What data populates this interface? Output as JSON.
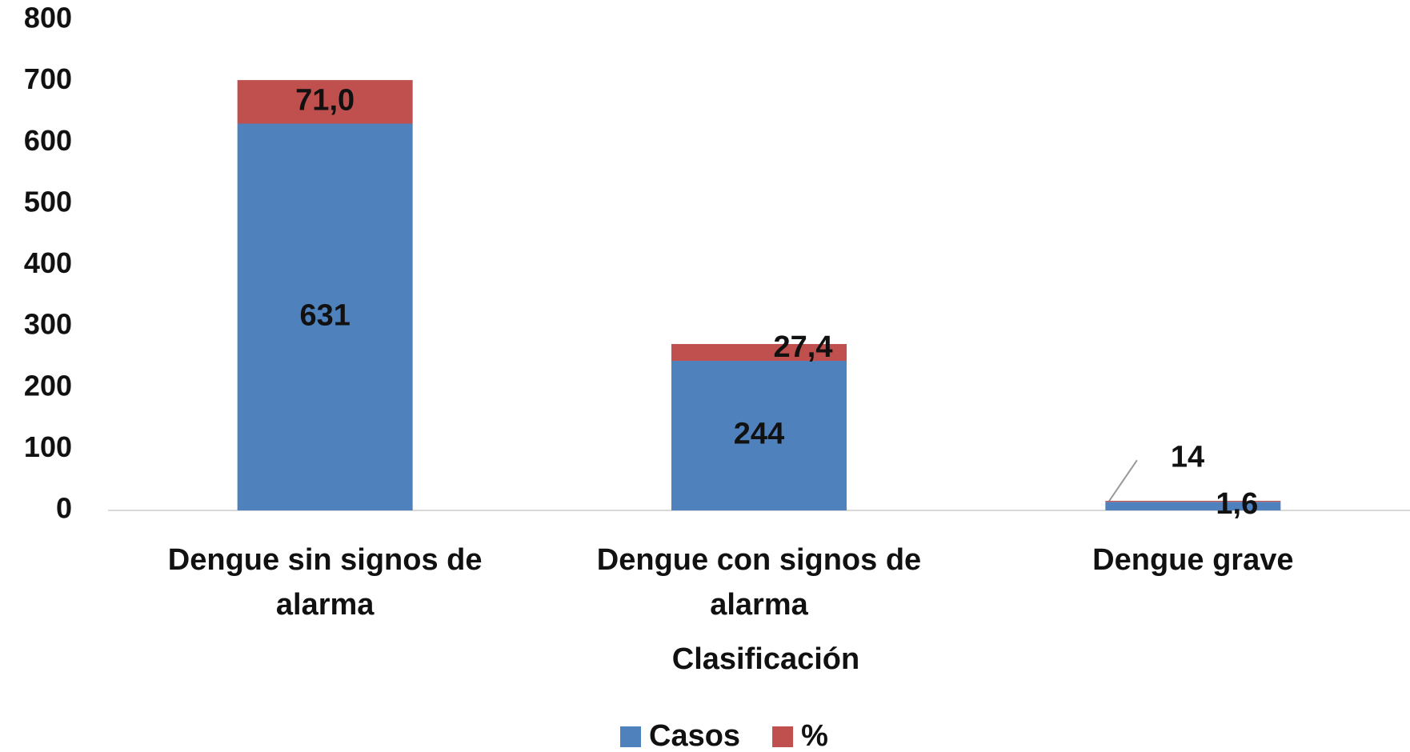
{
  "chart_data": {
    "type": "stacked_bar",
    "categories": [
      "Dengue sin signos de alarma",
      "Dengue con signos de alarma",
      "Dengue grave"
    ],
    "series": [
      {
        "name": "Casos",
        "color": "#4f81bd",
        "values": [
          631,
          244,
          14
        ]
      },
      {
        "name": "%",
        "color": "#c0504d",
        "values": [
          71.0,
          27.4,
          1.6
        ],
        "value_labels": [
          "71,0",
          "27,4",
          "1,6"
        ]
      }
    ],
    "x_label": "Clasificación",
    "ylim": [
      0,
      800
    ],
    "yticks": [
      0,
      100,
      200,
      300,
      400,
      500,
      600,
      700,
      800
    ],
    "grid": false,
    "legend": "bottom"
  }
}
